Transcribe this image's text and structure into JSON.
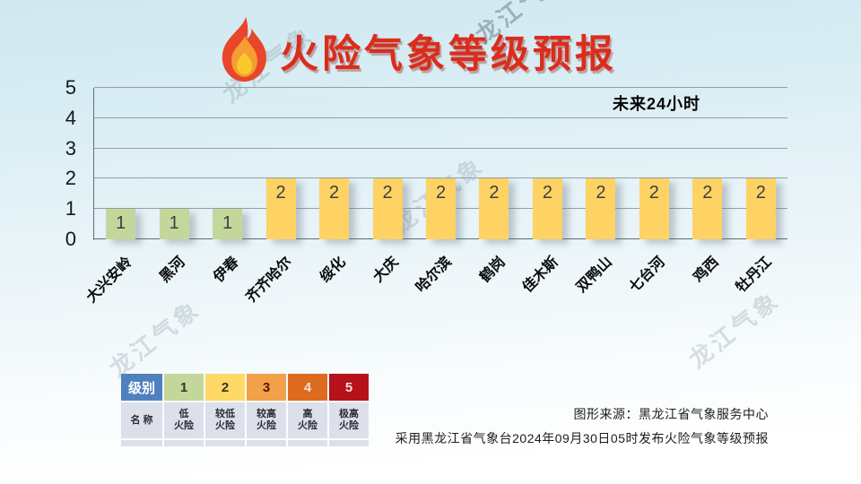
{
  "page": {
    "title": "火险气象等级预报",
    "watermark": "龙江气象"
  },
  "chart_data": {
    "type": "bar",
    "title": "火险气象等级预报",
    "annotation": "未来24小时",
    "categories": [
      "大兴安岭",
      "黑河",
      "伊春",
      "齐齐哈尔",
      "绥化",
      "大庆",
      "哈尔滨",
      "鹤岗",
      "佳木斯",
      "双鸭山",
      "七台河",
      "鸡西",
      "牡丹江"
    ],
    "values": [
      1,
      1,
      1,
      2,
      2,
      2,
      2,
      2,
      2,
      2,
      2,
      2,
      2
    ],
    "xlabel": "",
    "ylabel": "",
    "ylim": [
      0,
      5
    ],
    "yticks": [
      "0",
      "1",
      "2",
      "3",
      "4",
      "5"
    ],
    "grid": true,
    "legend_position": "bottom-left-table",
    "bar_colors": {
      "1": "#c4d79b",
      "2": "#fed263"
    }
  },
  "legend_table": {
    "level_header": "级别",
    "name_header": "名 称",
    "header_bg": "#4f81bd",
    "header_fg": "#ffffff",
    "body_bg": "#dce0eb",
    "body_fg": "#2b2b36",
    "levels": [
      {
        "level": "1",
        "name_line1": "低",
        "name_line2": "火险",
        "bg": "#c4d79b",
        "fg": "#38351f"
      },
      {
        "level": "2",
        "name_line1": "较低",
        "name_line2": "火险",
        "bg": "#ffd966",
        "fg": "#38351f"
      },
      {
        "level": "3",
        "name_line1": "较高",
        "name_line2": "火险",
        "bg": "#f2a04a",
        "fg": "#571509"
      },
      {
        "level": "4",
        "name_line1": "高",
        "name_line2": "火险",
        "bg": "#dd6b1f",
        "fg": "#f8ded9"
      },
      {
        "level": "5",
        "name_line1": "极高",
        "name_line2": "火险",
        "bg": "#b5121b",
        "fg": "#f8ded9"
      }
    ]
  },
  "source": {
    "line1": "图形来源：黑龙江省气象服务中心",
    "line2": "采用黑龙江省气象台2024年09月30日05时发布火险气象等级预报"
  }
}
